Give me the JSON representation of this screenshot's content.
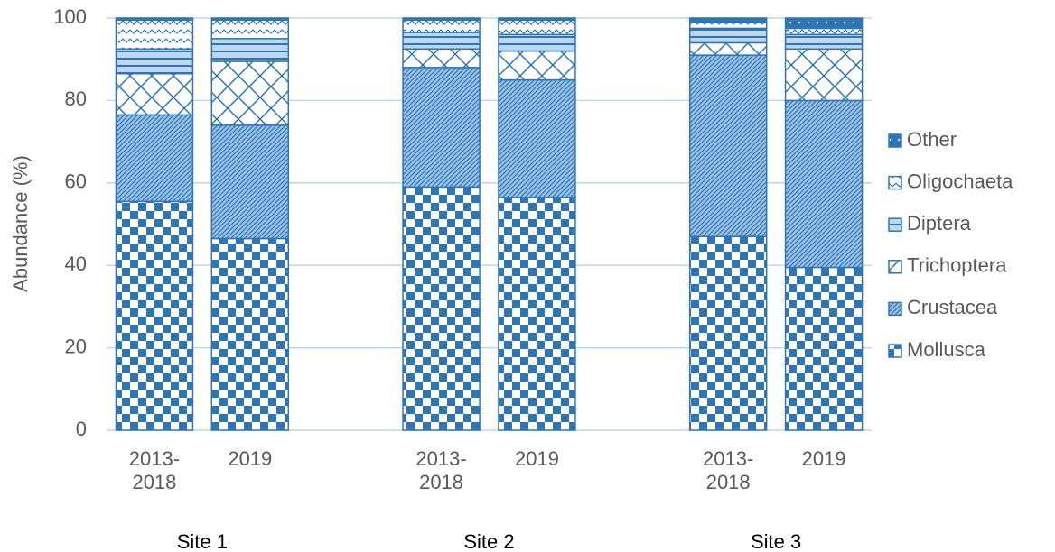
{
  "chart_data": {
    "type": "stacked-bar",
    "y_label": "Abundance (%)",
    "categories": [
      "2013-2018",
      "2019",
      null,
      "2013-2018",
      "2019",
      null,
      "2013-2018",
      "2019"
    ],
    "groups": [
      {
        "label": "Site 1",
        "slots": [
          0,
          1
        ]
      },
      {
        "label": "Site 2",
        "slots": [
          3,
          4
        ]
      },
      {
        "label": "Site 3",
        "slots": [
          6,
          7
        ]
      }
    ],
    "series": [
      {
        "name": "Mollusca",
        "color": "#2e75b6",
        "pattern": "checker",
        "values": [
          55.5,
          46.5,
          null,
          59,
          56.5,
          null,
          47,
          39.5
        ]
      },
      {
        "name": "Crustacea",
        "color": "#2e75b6",
        "pattern": "hatch",
        "values": [
          21,
          27.5,
          null,
          29,
          28.5,
          null,
          44,
          40.5
        ]
      },
      {
        "name": "Trichoptera",
        "color": "#2e75b6",
        "pattern": "lattice",
        "values": [
          10,
          15.5,
          null,
          4.5,
          7,
          null,
          3,
          12.5
        ]
      },
      {
        "name": "Diptera",
        "color": "#2e75b6",
        "pattern": "stripes",
        "values": [
          6,
          5.5,
          null,
          4,
          4,
          null,
          3.5,
          3.5
        ]
      },
      {
        "name": "Oligochaeta",
        "color": "#2e75b6",
        "pattern": "wave",
        "values": [
          7,
          4.5,
          null,
          3,
          3.5,
          null,
          1.5,
          1.5
        ]
      },
      {
        "name": "Other",
        "color": "#2e75b6",
        "pattern": "dots",
        "values": [
          0.5,
          0.5,
          null,
          0.5,
          0.5,
          null,
          1,
          2.5
        ]
      }
    ],
    "ylim": [
      0,
      100
    ],
    "yticks": [
      0,
      20,
      40,
      60,
      80,
      100
    ],
    "grid": true,
    "legend": "right"
  }
}
